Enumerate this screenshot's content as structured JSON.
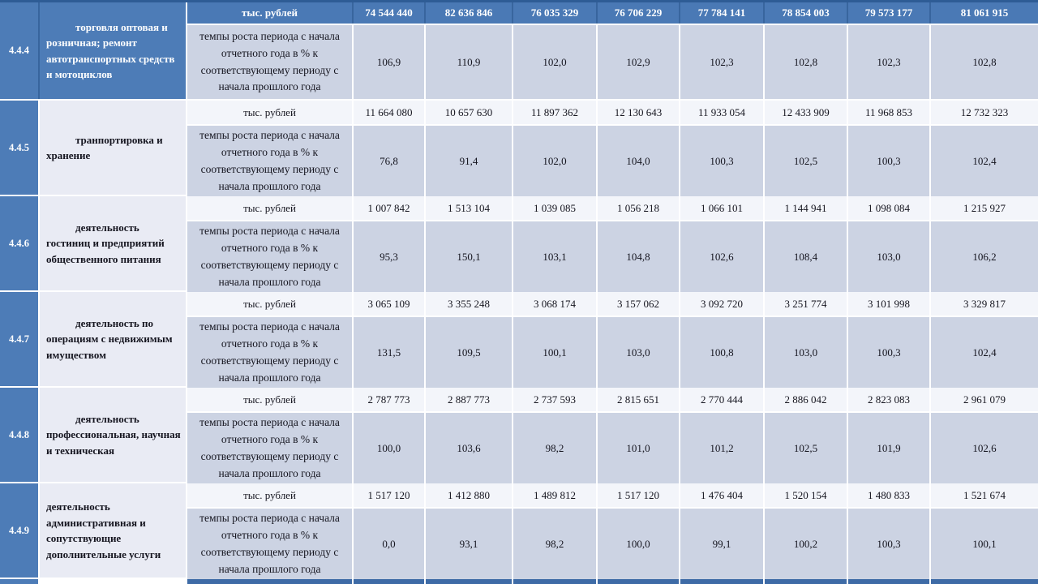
{
  "metrics": {
    "rub_label": "тыс. рублей",
    "growth_label": "темпы роста периода с начала отчетного года в % к соответствующему периоду с начала прошлого года"
  },
  "colors": {
    "header_blue": "#4d7cb7",
    "dark_separator_blue": "#38659e",
    "band_blue": "#ccd3e3",
    "category_bg": "#e9ebf4",
    "value_row_bg": "#f3f5fa",
    "next_row_blue": "#3e6ba6"
  },
  "groups": [
    {
      "id": "4.4.4",
      "category": "торговля оптовая и розничная; ремонт автотранспортных средств и мотоциклов",
      "rub": [
        "74 544 440",
        "82 636 846",
        "76 035 329",
        "76 706 229",
        "77 784 141",
        "78 854 003",
        "79 573 177",
        "81 061 915"
      ],
      "growth": [
        "106,9",
        "110,9",
        "102,0",
        "102,9",
        "102,3",
        "102,8",
        "102,3",
        "102,8"
      ]
    },
    {
      "id": "4.4.5",
      "category": "транпортировка и хранение",
      "rub": [
        "11 664 080",
        "10 657 630",
        "11 897 362",
        "12 130 643",
        "11 933 054",
        "12 433 909",
        "11 968 853",
        "12 732 323"
      ],
      "growth": [
        "76,8",
        "91,4",
        "102,0",
        "104,0",
        "100,3",
        "102,5",
        "100,3",
        "102,4"
      ]
    },
    {
      "id": "4.4.6",
      "category": "деятельность гостиниц и предприятий общественного питания",
      "rub": [
        "1 007 842",
        "1 513 104",
        "1 039 085",
        "1 056 218",
        "1 066 101",
        "1 144 941",
        "1 098 084",
        "1 215 927"
      ],
      "growth": [
        "95,3",
        "150,1",
        "103,1",
        "104,8",
        "102,6",
        "108,4",
        "103,0",
        "106,2"
      ]
    },
    {
      "id": "4.4.7",
      "category": "деятельность по операциям с недвижимым имуществом",
      "rub": [
        "3 065 109",
        "3 355 248",
        "3 068 174",
        "3 157 062",
        "3 092 720",
        "3 251 774",
        "3 101 998",
        "3 329 817"
      ],
      "growth": [
        "131,5",
        "109,5",
        "100,1",
        "103,0",
        "100,8",
        "103,0",
        "100,3",
        "102,4"
      ]
    },
    {
      "id": "4.4.8",
      "category": "деятельность профессиональная, научная и техническая",
      "rub": [
        "2 787 773",
        "2 887 773",
        "2 737 593",
        "2 815 651",
        "2 770 444",
        "2 886 042",
        "2 823 083",
        "2 961 079"
      ],
      "growth": [
        "100,0",
        "103,6",
        "98,2",
        "101,0",
        "101,2",
        "102,5",
        "101,9",
        "102,6"
      ]
    },
    {
      "id": "4.4.9",
      "category": "деятельность административная и сопутствующие дополнительные услуги",
      "rub": [
        "1 517 120",
        "1 412 880",
        "1 489 812",
        "1 517 120",
        "1 476 404",
        "1 520 154",
        "1 480 833",
        "1 521 674"
      ],
      "growth": [
        "0,0",
        "93,1",
        "98,2",
        "100,0",
        "99,1",
        "100,2",
        "100,3",
        "100,1"
      ]
    }
  ]
}
